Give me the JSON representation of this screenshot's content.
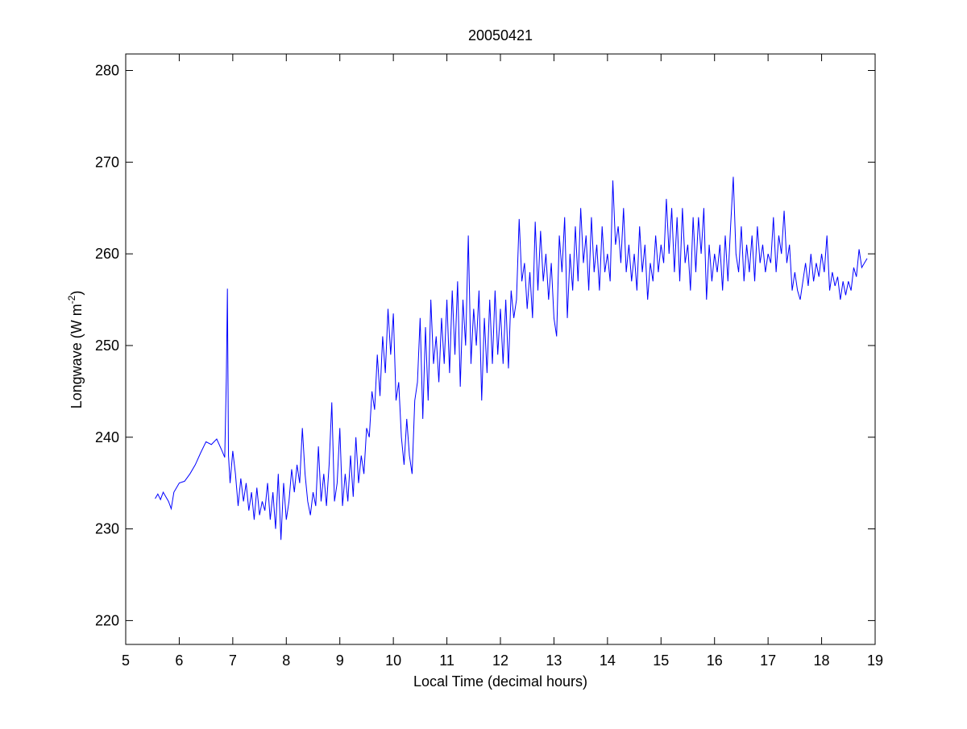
{
  "chart_data": {
    "type": "line",
    "title": "20050421",
    "xlabel": "Local Time (decimal hours)",
    "ylabel": {
      "text": "Longwave (W m",
      "superscript": "-2",
      "suffix": ")"
    },
    "xlim": [
      5,
      19
    ],
    "ylim": [
      217.4,
      281.8
    ],
    "xticks": [
      5,
      6,
      7,
      8,
      9,
      10,
      11,
      12,
      13,
      14,
      15,
      16,
      17,
      18,
      19
    ],
    "yticks": [
      220,
      230,
      240,
      250,
      260,
      270,
      280
    ],
    "x": [
      5.55,
      5.6,
      5.65,
      5.7,
      5.75,
      5.8,
      5.85,
      5.9,
      5.95,
      6.0,
      6.1,
      6.2,
      6.3,
      6.4,
      6.5,
      6.6,
      6.7,
      6.8,
      6.85,
      6.88,
      6.9,
      6.92,
      6.95,
      7.0,
      7.05,
      7.1,
      7.15,
      7.2,
      7.25,
      7.3,
      7.35,
      7.4,
      7.45,
      7.5,
      7.55,
      7.6,
      7.65,
      7.7,
      7.75,
      7.8,
      7.85,
      7.9,
      7.95,
      8.0,
      8.05,
      8.1,
      8.15,
      8.2,
      8.25,
      8.3,
      8.35,
      8.4,
      8.45,
      8.5,
      8.55,
      8.6,
      8.65,
      8.7,
      8.75,
      8.8,
      8.85,
      8.9,
      8.95,
      9.0,
      9.05,
      9.1,
      9.15,
      9.2,
      9.25,
      9.3,
      9.35,
      9.4,
      9.45,
      9.5,
      9.55,
      9.6,
      9.65,
      9.7,
      9.75,
      9.8,
      9.85,
      9.9,
      9.95,
      10.0,
      10.05,
      10.1,
      10.15,
      10.2,
      10.25,
      10.3,
      10.35,
      10.4,
      10.45,
      10.5,
      10.55,
      10.6,
      10.65,
      10.7,
      10.75,
      10.8,
      10.85,
      10.9,
      10.95,
      11.0,
      11.05,
      11.1,
      11.15,
      11.2,
      11.25,
      11.3,
      11.35,
      11.4,
      11.45,
      11.5,
      11.55,
      11.6,
      11.65,
      11.7,
      11.75,
      11.8,
      11.85,
      11.9,
      11.95,
      12.0,
      12.05,
      12.1,
      12.15,
      12.2,
      12.25,
      12.3,
      12.35,
      12.4,
      12.45,
      12.5,
      12.55,
      12.6,
      12.65,
      12.7,
      12.75,
      12.8,
      12.85,
      12.9,
      12.95,
      13.0,
      13.05,
      13.1,
      13.15,
      13.2,
      13.25,
      13.3,
      13.35,
      13.4,
      13.45,
      13.5,
      13.55,
      13.6,
      13.65,
      13.7,
      13.75,
      13.8,
      13.85,
      13.9,
      13.95,
      14.0,
      14.05,
      14.1,
      14.15,
      14.2,
      14.25,
      14.3,
      14.35,
      14.4,
      14.45,
      14.5,
      14.55,
      14.6,
      14.65,
      14.7,
      14.75,
      14.8,
      14.85,
      14.9,
      14.95,
      15.0,
      15.05,
      15.1,
      15.15,
      15.2,
      15.25,
      15.3,
      15.35,
      15.4,
      15.45,
      15.5,
      15.55,
      15.6,
      15.65,
      15.7,
      15.75,
      15.8,
      15.85,
      15.9,
      15.95,
      16.0,
      16.05,
      16.1,
      16.15,
      16.2,
      16.25,
      16.3,
      16.35,
      16.4,
      16.45,
      16.5,
      16.55,
      16.6,
      16.65,
      16.7,
      16.75,
      16.8,
      16.85,
      16.9,
      16.95,
      17.0,
      17.05,
      17.1,
      17.15,
      17.2,
      17.25,
      17.3,
      17.35,
      17.4,
      17.45,
      17.5,
      17.55,
      17.6,
      17.65,
      17.7,
      17.75,
      17.8,
      17.85,
      17.9,
      17.95,
      18.0,
      18.05,
      18.1,
      18.15,
      18.2,
      18.25,
      18.3,
      18.35,
      18.4,
      18.45,
      18.5,
      18.55,
      18.6,
      18.65,
      18.7,
      18.75,
      18.8,
      18.85
    ],
    "series": [
      {
        "color": "#0000ff",
        "values": [
          233.3,
          233.8,
          233.2,
          234,
          233.5,
          233,
          232.2,
          234,
          234.5,
          235,
          235.2,
          236,
          237,
          238.3,
          239.5,
          239.2,
          239.8,
          238.5,
          237.8,
          246.5,
          256.2,
          238,
          235,
          238.5,
          236,
          232.5,
          235.5,
          233,
          235,
          232,
          234,
          231,
          234.5,
          231.5,
          233,
          232,
          235,
          231,
          234,
          230,
          236,
          228.8,
          235,
          231,
          233,
          236.5,
          234,
          237,
          235,
          241,
          236,
          233,
          231.5,
          234,
          232.5,
          239,
          233,
          236,
          232.5,
          237,
          243.8,
          233,
          235,
          241,
          232.5,
          236,
          233,
          238,
          233.5,
          240,
          235,
          238,
          236,
          241,
          240,
          245,
          243,
          249,
          244.5,
          251,
          247,
          254,
          249,
          253.5,
          244,
          246,
          240,
          237,
          242,
          238,
          236,
          244,
          246,
          253,
          242,
          252,
          244,
          255,
          248,
          251,
          246,
          253,
          248,
          255,
          247,
          256,
          249,
          257,
          245.5,
          255,
          250,
          262,
          248,
          254,
          250,
          256,
          244,
          253,
          247,
          255,
          248,
          256,
          249,
          254,
          248,
          255,
          247.5,
          256,
          253,
          255,
          263.8,
          257,
          259,
          254,
          258,
          253,
          263.5,
          256,
          262.5,
          257,
          260,
          255,
          259,
          253,
          251,
          262,
          258,
          264,
          253,
          260,
          256,
          263,
          257,
          265,
          259,
          262,
          256,
          264,
          258,
          261,
          256,
          263,
          258,
          260,
          257,
          268,
          261,
          263,
          259,
          265,
          258,
          261,
          257,
          260,
          256,
          263,
          258,
          261,
          255,
          259,
          257,
          262,
          258,
          261,
          259,
          266,
          260,
          265,
          258,
          264,
          257,
          265,
          259,
          261,
          256,
          264,
          258,
          264,
          260,
          265,
          255,
          261,
          257,
          260,
          258,
          261,
          256,
          262,
          257,
          263,
          268.4,
          260,
          258,
          263,
          257,
          261,
          258,
          262,
          257,
          263,
          259,
          261,
          258,
          260,
          259,
          264,
          258,
          262,
          260,
          264.7,
          259,
          261,
          256,
          258,
          256,
          255,
          257,
          259,
          256.5,
          260,
          257,
          259,
          257.5,
          260,
          258,
          262,
          256,
          258,
          256.5,
          257.5,
          255,
          257,
          255.5,
          257,
          256,
          258.5,
          257.5,
          260.5,
          258.5,
          259,
          259.5
        ]
      }
    ]
  }
}
